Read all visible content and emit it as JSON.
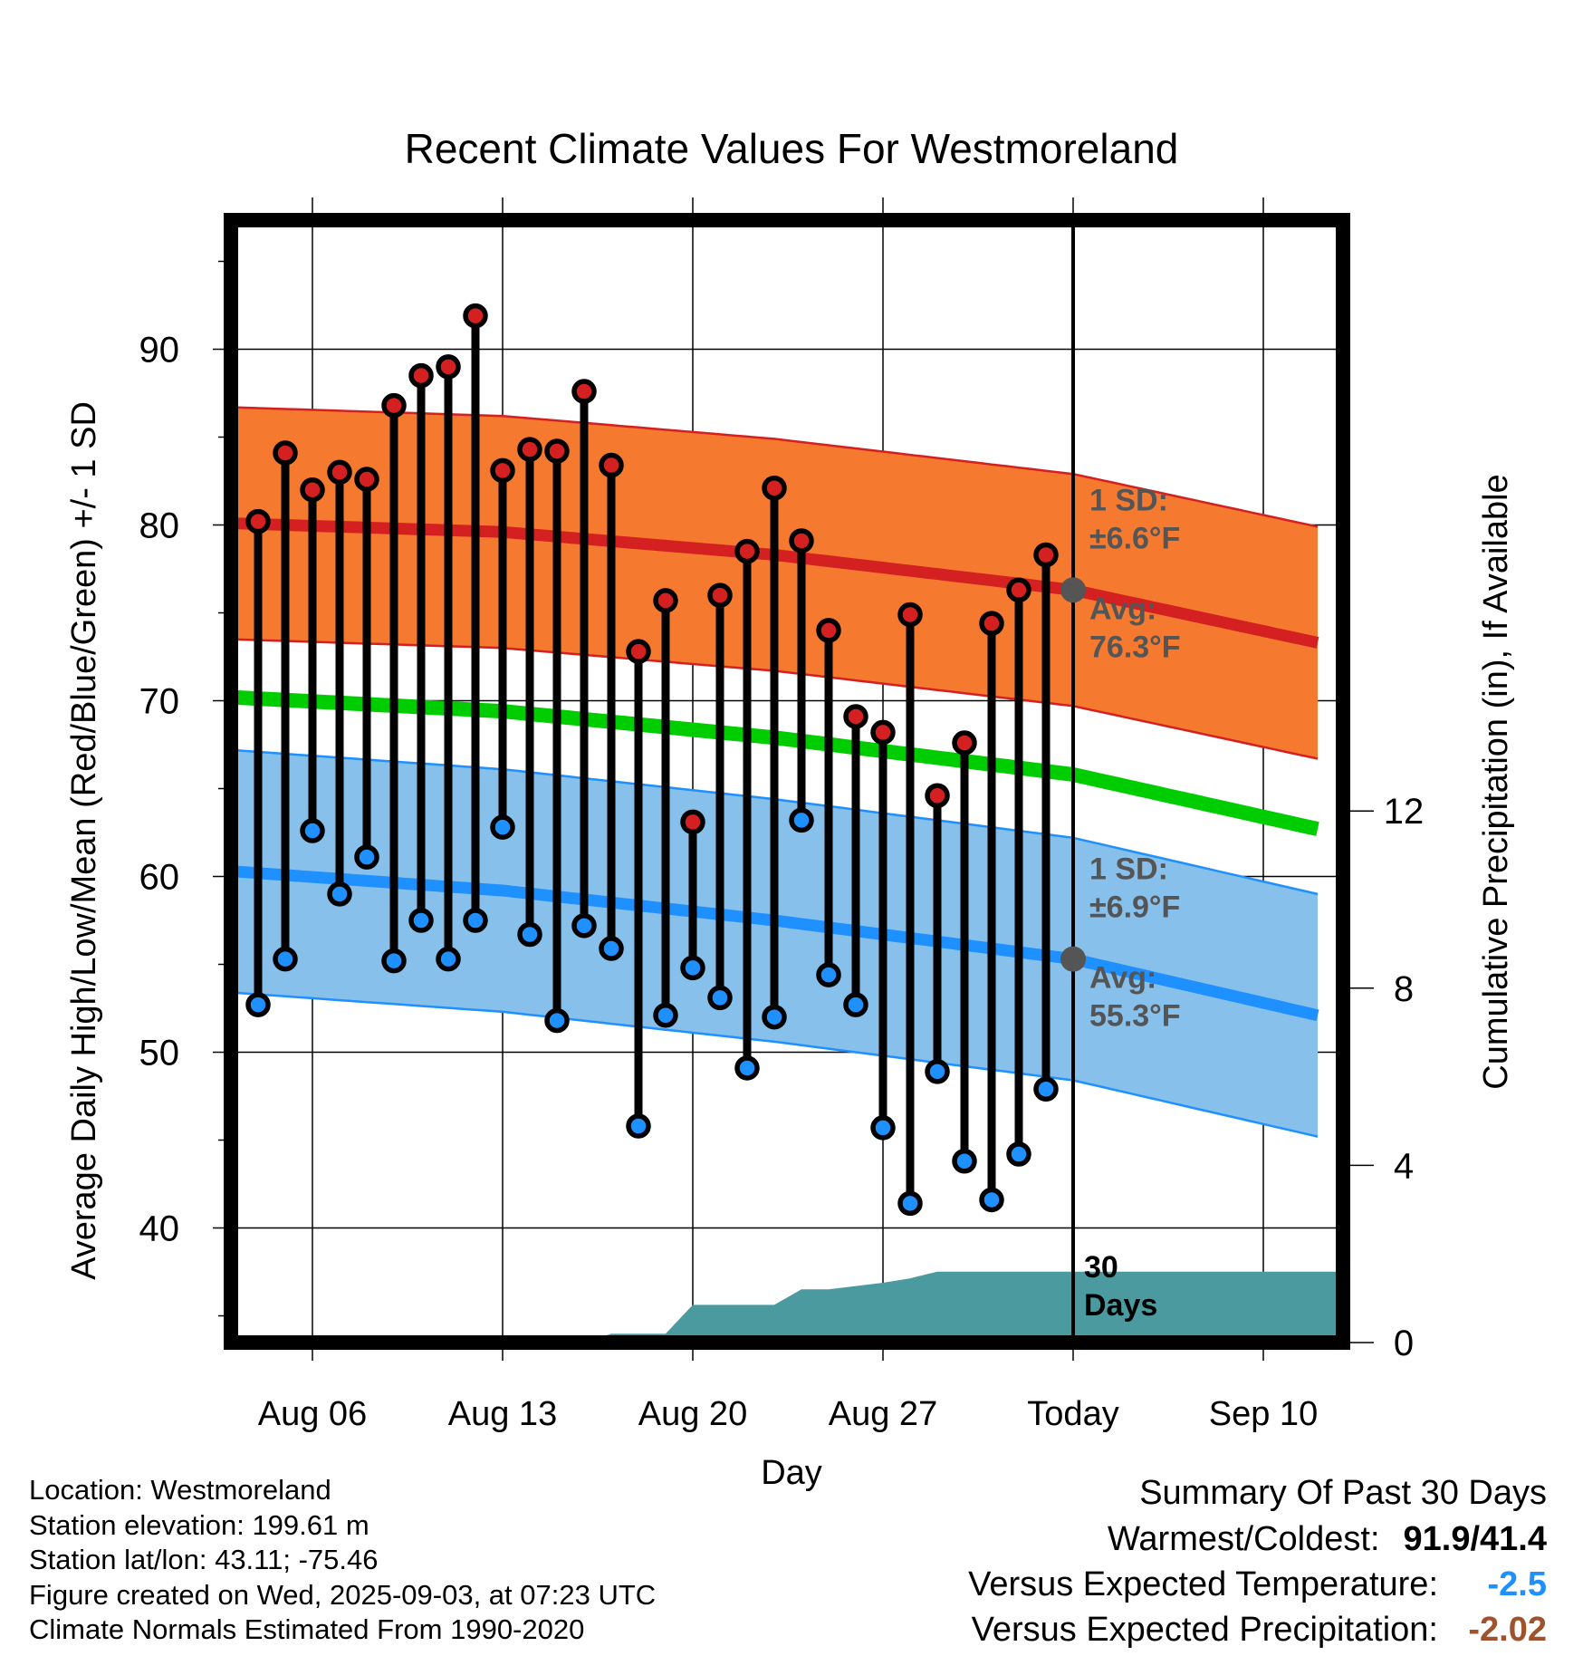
{
  "chart_data": {
    "type": "line",
    "title": "Recent Climate Values For Westmoreland",
    "xlabel": "Day",
    "ylabel": "Average Daily High/Low/Mean (Red/Blue/Green) +/- 1 SD",
    "ylabel_right": "Cumulative Precipitation (in), If Available",
    "ylim": [
      33.5,
      96.5
    ],
    "y_ticks": [
      40,
      50,
      60,
      70,
      80,
      90
    ],
    "y2lim": [
      0,
      15
    ],
    "y2_ticks": [
      0,
      4,
      8,
      12
    ],
    "xlim": [
      "2025-08-03",
      "2025-09-12"
    ],
    "x_ticks": [
      {
        "date": "2025-08-06",
        "label": "Aug 06"
      },
      {
        "date": "2025-08-13",
        "label": "Aug 13"
      },
      {
        "date": "2025-08-20",
        "label": "Aug 20"
      },
      {
        "date": "2025-08-27",
        "label": "Aug 27"
      },
      {
        "date": "2025-09-03",
        "label": "Today"
      },
      {
        "date": "2025-09-10",
        "label": "Sep 10"
      }
    ],
    "today": "2025-09-03",
    "grid": true,
    "colors": {
      "high": "#d42020",
      "low": "#1e90ff",
      "mean": "#00cd00",
      "high_band": "#f57a30",
      "low_band": "#87c0ea",
      "precip": "#4a9aa0",
      "marker_today": "#555555"
    },
    "daily_observations": {
      "dates": [
        "2025-08-04",
        "2025-08-05",
        "2025-08-06",
        "2025-08-07",
        "2025-08-08",
        "2025-08-09",
        "2025-08-10",
        "2025-08-11",
        "2025-08-12",
        "2025-08-13",
        "2025-08-14",
        "2025-08-15",
        "2025-08-16",
        "2025-08-17",
        "2025-08-18",
        "2025-08-19",
        "2025-08-20",
        "2025-08-21",
        "2025-08-22",
        "2025-08-23",
        "2025-08-24",
        "2025-08-25",
        "2025-08-26",
        "2025-08-27",
        "2025-08-28",
        "2025-08-29",
        "2025-08-30",
        "2025-08-31",
        "2025-09-01",
        "2025-09-02"
      ],
      "high": [
        80.2,
        84.1,
        82.0,
        83.0,
        82.6,
        86.8,
        88.5,
        89.0,
        91.9,
        83.1,
        84.3,
        84.2,
        87.6,
        83.4,
        72.8,
        75.7,
        63.1,
        76.0,
        78.5,
        82.1,
        79.1,
        74.0,
        69.1,
        68.2,
        74.9,
        64.6,
        67.6,
        74.4,
        76.3,
        78.3
      ],
      "low": [
        52.7,
        55.3,
        62.6,
        59.0,
        61.1,
        55.2,
        57.5,
        55.3,
        57.5,
        62.8,
        56.7,
        51.8,
        57.2,
        55.9,
        45.8,
        52.1,
        54.8,
        53.1,
        49.1,
        52.0,
        63.2,
        54.4,
        52.7,
        45.7,
        41.4,
        48.9,
        43.8,
        41.6,
        44.2,
        47.9
      ]
    },
    "normals": {
      "x": [
        "2025-08-03",
        "2025-08-13",
        "2025-08-23",
        "2025-09-03",
        "2025-09-12"
      ],
      "high_mean": [
        80.1,
        79.6,
        78.3,
        76.3,
        73.3
      ],
      "high_sd": 6.6,
      "low_mean": [
        60.3,
        59.2,
        57.5,
        55.3,
        52.1
      ],
      "low_sd": 6.9,
      "mean": [
        70.2,
        69.4,
        67.9,
        65.8,
        62.7
      ]
    },
    "precipitation": {
      "x": [
        "2025-08-03",
        "2025-08-16",
        "2025-08-17",
        "2025-08-18",
        "2025-08-19",
        "2025-08-20",
        "2025-08-23",
        "2025-08-24",
        "2025-08-25",
        "2025-08-27",
        "2025-08-28",
        "2025-08-29",
        "2025-09-03",
        "2025-09-12"
      ],
      "cumulative": [
        0.0,
        0.0,
        0.2,
        0.2,
        0.2,
        0.85,
        0.85,
        1.2,
        1.2,
        1.35,
        1.45,
        1.6,
        1.6,
        1.6
      ]
    },
    "annotations": {
      "high_sd": "1 SD:\n±6.6°F",
      "high_avg": "Avg:\n76.3°F",
      "low_sd": "1 SD:\n±6.9°F",
      "low_avg": "Avg:\n55.3°F",
      "period": "30\nDays"
    }
  },
  "footer": {
    "location": "Location: Westmoreland",
    "elevation": "Station elevation: 199.61 m",
    "latlon": "Station lat/lon: 43.11; -75.46",
    "created": "Figure created on Wed, 2025-09-03, at 07:23 UTC",
    "normals": "Climate Normals Estimated From 1990-2020"
  },
  "summary": {
    "title": "Summary Of Past 30 Days",
    "warm_cold_label": "Warmest/Coldest:",
    "warm_cold_value": "91.9/41.4",
    "temp_label": "Versus Expected Temperature:",
    "temp_value": "-2.5",
    "temp_color": "#1e90ff",
    "precip_label": "Versus Expected Precipitation:",
    "precip_value": "-2.02",
    "precip_color": "#a0522d"
  }
}
